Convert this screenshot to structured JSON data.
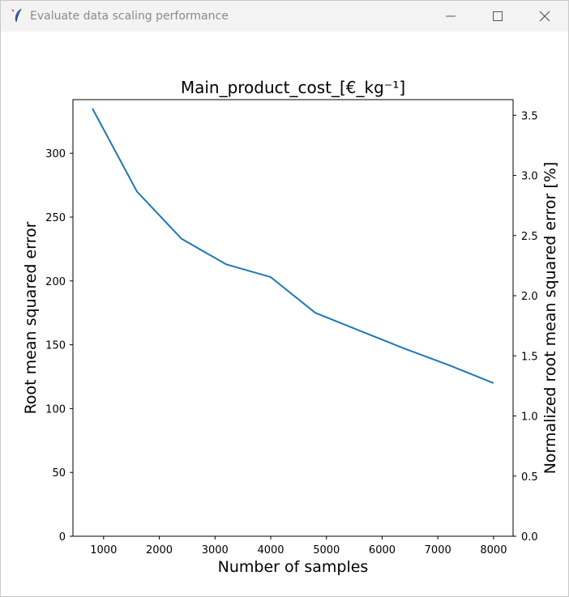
{
  "window": {
    "title": "Evaluate data scaling performance",
    "icons": {
      "app": "feather-icon",
      "minimize": "minimize-icon",
      "maximize": "maximize-icon",
      "close": "close-icon"
    }
  },
  "chart_data": {
    "type": "line",
    "title": "Main_product_cost_[€_kg⁻¹]",
    "xlabel": "Number of samples",
    "ylabel": "Root mean squared error",
    "y2label": "Normalized root mean squared error [%]",
    "xlim": [
      450,
      8350
    ],
    "ylim": [
      0,
      342
    ],
    "y2lim": [
      0,
      3.63
    ],
    "x_ticks": [
      1000,
      2000,
      3000,
      4000,
      5000,
      6000,
      7000,
      8000
    ],
    "y_ticks": [
      0,
      50,
      100,
      150,
      200,
      250,
      300
    ],
    "y2_ticks": [
      "0.0",
      "0.5",
      "1.0",
      "1.5",
      "2.0",
      "2.5",
      "3.0",
      "3.5"
    ],
    "grid": false,
    "series": [
      {
        "color": "#1f77b4",
        "x": [
          800,
          1600,
          2400,
          3200,
          4000,
          4800,
          5600,
          6400,
          7200,
          8000
        ],
        "y": [
          335,
          270,
          233,
          213,
          203,
          175,
          161,
          147,
          134,
          120
        ]
      }
    ]
  }
}
